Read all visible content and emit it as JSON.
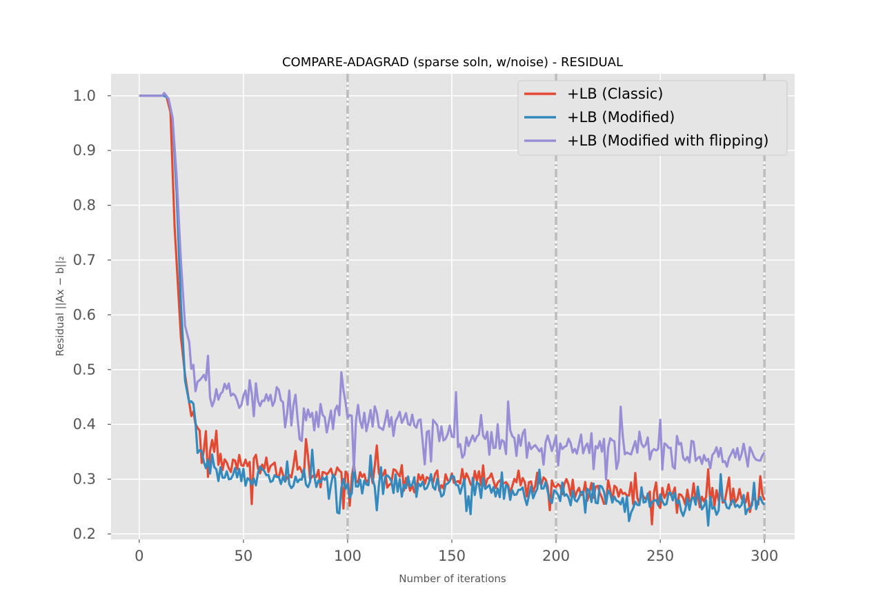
{
  "chart_data": {
    "type": "line",
    "title": "COMPARE-ADAGRAD (sparse soln, w/noise) - RESIDUAL",
    "xlabel": "Number of iterations",
    "ylabel": "Residual ||Ax − b||₂",
    "xlim": [
      -13.5,
      314.5
    ],
    "ylim": [
      0.19,
      1.04
    ],
    "xticks": [
      0,
      50,
      100,
      150,
      200,
      250,
      300
    ],
    "yticks": [
      0.2,
      0.3,
      0.4,
      0.5,
      0.6,
      0.7,
      0.8,
      0.9,
      1.0
    ],
    "xtick_labels": [
      "0",
      "50",
      "100",
      "150",
      "200",
      "250",
      "300"
    ],
    "ytick_labels": [
      "0.2",
      "0.3",
      "0.4",
      "0.5",
      "0.6",
      "0.7",
      "0.8",
      "0.9",
      "1.0"
    ],
    "grid": true,
    "vlines": [
      100,
      200,
      300
    ],
    "legend_position": "top-right",
    "colors": {
      "axes_bg": "#e5e5e5",
      "grid": "#ffffff",
      "vline": "#bdbdbd",
      "tick_text": "#555555"
    },
    "series": [
      {
        "name": "+LB (Classic)",
        "color": "#e24a33",
        "anchors": [
          [
            0,
            1.0
          ],
          [
            12,
            1.0
          ],
          [
            13,
            1.0
          ],
          [
            15,
            0.97
          ],
          [
            17,
            0.76
          ],
          [
            20,
            0.56
          ],
          [
            22,
            0.49
          ],
          [
            24,
            0.44
          ],
          [
            26,
            0.42
          ],
          [
            28,
            0.4
          ],
          [
            30,
            0.375
          ],
          [
            35,
            0.35
          ],
          [
            40,
            0.335
          ],
          [
            50,
            0.33
          ],
          [
            60,
            0.325
          ],
          [
            80,
            0.31
          ],
          [
            100,
            0.305
          ],
          [
            130,
            0.3
          ],
          [
            160,
            0.295
          ],
          [
            180,
            0.29
          ],
          [
            200,
            0.285
          ],
          [
            230,
            0.275
          ],
          [
            260,
            0.27
          ],
          [
            300,
            0.27
          ]
        ],
        "noise": 0.022,
        "seed": 11
      },
      {
        "name": "+LB (Modified)",
        "color": "#348abd",
        "anchors": [
          [
            0,
            1.0
          ],
          [
            12,
            1.0
          ],
          [
            14,
            0.995
          ],
          [
            16,
            0.96
          ],
          [
            18,
            0.82
          ],
          [
            20,
            0.62
          ],
          [
            22,
            0.48
          ],
          [
            24,
            0.44
          ],
          [
            26,
            0.43
          ],
          [
            28,
            0.38
          ],
          [
            30,
            0.34
          ],
          [
            35,
            0.32
          ],
          [
            40,
            0.31
          ],
          [
            50,
            0.305
          ],
          [
            60,
            0.3
          ],
          [
            80,
            0.295
          ],
          [
            100,
            0.29
          ],
          [
            130,
            0.29
          ],
          [
            160,
            0.285
          ],
          [
            180,
            0.28
          ],
          [
            200,
            0.275
          ],
          [
            230,
            0.265
          ],
          [
            260,
            0.26
          ],
          [
            300,
            0.255
          ]
        ],
        "noise": 0.02,
        "seed": 29
      },
      {
        "name": "+LB (Modified with flipping)",
        "color": "#988ed5",
        "anchors": [
          [
            0,
            1.0
          ],
          [
            11,
            1.0
          ],
          [
            12,
            1.005
          ],
          [
            14,
            0.995
          ],
          [
            16,
            0.96
          ],
          [
            18,
            0.85
          ],
          [
            20,
            0.7
          ],
          [
            22,
            0.58
          ],
          [
            24,
            0.55
          ],
          [
            26,
            0.52
          ],
          [
            30,
            0.49
          ],
          [
            35,
            0.46
          ],
          [
            40,
            0.46
          ],
          [
            50,
            0.45
          ],
          [
            60,
            0.44
          ],
          [
            70,
            0.43
          ],
          [
            80,
            0.42
          ],
          [
            100,
            0.415
          ],
          [
            120,
            0.405
          ],
          [
            140,
            0.39
          ],
          [
            160,
            0.38
          ],
          [
            180,
            0.37
          ],
          [
            200,
            0.36
          ],
          [
            230,
            0.355
          ],
          [
            260,
            0.35
          ],
          [
            300,
            0.345
          ]
        ],
        "noise": 0.03,
        "seed": 53
      }
    ]
  }
}
